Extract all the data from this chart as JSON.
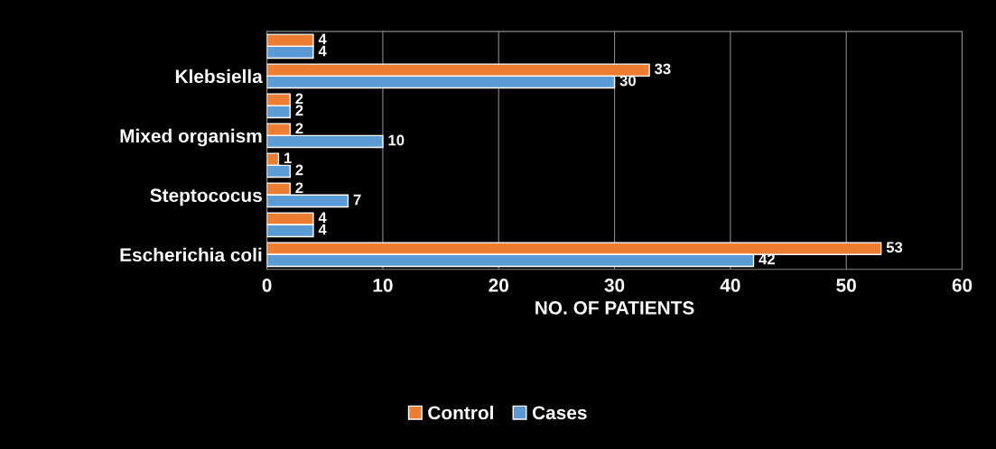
{
  "chart_data": {
    "type": "bar",
    "orientation": "horizontal",
    "categories": [
      null,
      "Klebsiella",
      null,
      "Mixed organism",
      null,
      "Steptococus",
      null,
      "Escherichia coli"
    ],
    "series": [
      {
        "name": "Control",
        "color": "#ed7d31",
        "values": [
          4,
          33,
          2,
          2,
          1,
          2,
          4,
          53
        ]
      },
      {
        "name": "Cases",
        "color": "#5b9bd5",
        "values": [
          4,
          30,
          2,
          10,
          2,
          7,
          4,
          42
        ]
      }
    ],
    "xlabel": "NO. OF PATIENTS",
    "xlim": [
      0,
      60
    ],
    "xticks": [
      0,
      10,
      20,
      30,
      40,
      50,
      60
    ],
    "grid": "x",
    "legend": "bottom",
    "data_labels": true
  }
}
